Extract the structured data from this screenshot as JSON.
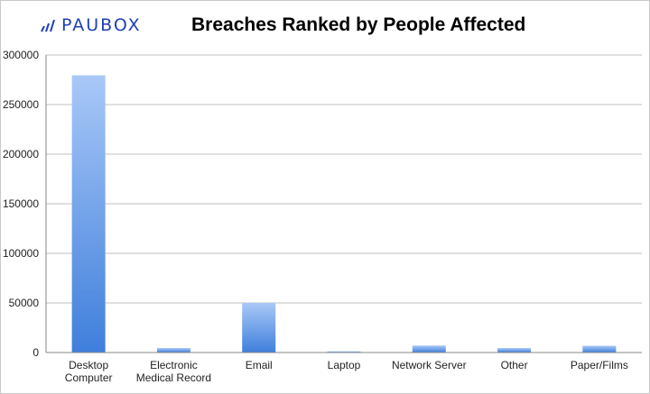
{
  "logo": {
    "text": "PAUBOX",
    "color": "#1f3fb6"
  },
  "chart_data": {
    "type": "bar",
    "title": "Breaches Ranked by People Affected",
    "categories": [
      [
        "Desktop",
        "Computer"
      ],
      [
        "Electronic",
        "Medical Record"
      ],
      [
        "Email"
      ],
      [
        "Laptop"
      ],
      [
        "Network Server"
      ],
      [
        "Other"
      ],
      [
        "Paper/Films"
      ]
    ],
    "values": [
      279500,
      4500,
      50000,
      1200,
      7000,
      4500,
      6800
    ],
    "ylim": [
      0,
      300000
    ],
    "yticks": [
      0,
      50000,
      100000,
      150000,
      200000,
      250000,
      300000
    ],
    "grid": true,
    "xlabel": "",
    "ylabel": "",
    "colors": {
      "bar_top": "#a9c8f7",
      "bar_bottom": "#3f7fdc",
      "grid": "#bfbfbf",
      "axis": "#888888"
    }
  }
}
